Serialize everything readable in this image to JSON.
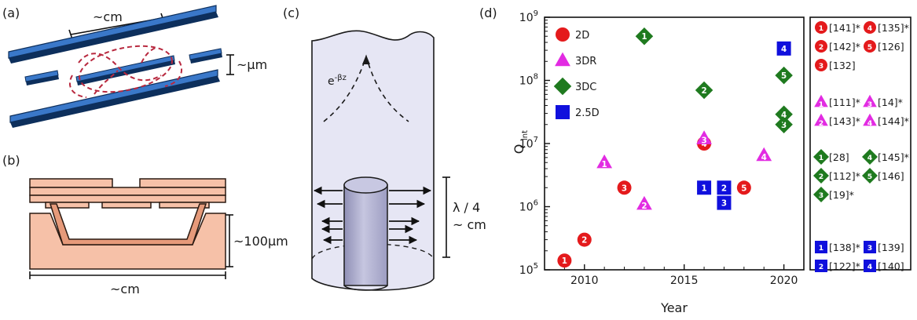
{
  "panels": {
    "a": {
      "label": "(a)",
      "length": "~cm",
      "gap": "~µm"
    },
    "b": {
      "label": "(b)",
      "height": "~100µm",
      "width": "~cm"
    },
    "c": {
      "label": "(c)",
      "decay": "e",
      "decay_exp": "-βz",
      "height": "λ / 4",
      "height2": "~ cm"
    },
    "d": {
      "label": "(d)"
    }
  },
  "colors": {
    "blue_strip": "#3a78c9",
    "blue_edge": "#0d2f5c",
    "red_dash": "#b8293f",
    "salmon": "#f6c1a8",
    "salmon_dark": "#e69a7a",
    "cavity_fill": "#e6e6f4",
    "post_fill": "#b7b7d4",
    "red": "#e41a1c",
    "magenta": "#e22be2",
    "green": "#1f7a1f",
    "blue": "#1010dd"
  },
  "chart_data": {
    "type": "scatter",
    "xlabel": "Year",
    "ylabel": "Q",
    "ylabel_sub": "int",
    "xlim": [
      2008,
      2021
    ],
    "ylim_log10": [
      5,
      9
    ],
    "xticks": [
      "2010",
      "2015",
      "2020"
    ],
    "yticks": [
      {
        "base": "10",
        "exp": "5",
        "v": 5
      },
      {
        "base": "10",
        "exp": "6",
        "v": 6
      },
      {
        "base": "10",
        "exp": "7",
        "v": 7
      },
      {
        "base": "10",
        "exp": "8",
        "v": 8
      },
      {
        "base": "10",
        "exp": "9",
        "v": 9
      }
    ],
    "legend": [
      {
        "name": "2D",
        "shape": "circle"
      },
      {
        "name": "3DR",
        "shape": "triangle"
      },
      {
        "name": "3DC",
        "shape": "diamond"
      },
      {
        "name": "2.5D",
        "shape": "square"
      }
    ],
    "series": [
      {
        "name": "2D",
        "shape": "circle",
        "color": "#e41a1c",
        "points": [
          {
            "label": "1",
            "x": 2009,
            "y": 140000
          },
          {
            "label": "2",
            "x": 2010,
            "y": 300000
          },
          {
            "label": "3",
            "x": 2012,
            "y": 2000000
          },
          {
            "label": "4",
            "x": 2016,
            "y": 10000000
          },
          {
            "label": "5",
            "x": 2018,
            "y": 2000000
          }
        ]
      },
      {
        "name": "3DR",
        "shape": "triangle",
        "color": "#e22be2",
        "points": [
          {
            "label": "1",
            "x": 2011,
            "y": 5000000
          },
          {
            "label": "2",
            "x": 2013,
            "y": 1100000
          },
          {
            "label": "3",
            "x": 2016,
            "y": 12000000
          },
          {
            "label": "4",
            "x": 2019,
            "y": 6500000
          }
        ]
      },
      {
        "name": "3DC",
        "shape": "diamond",
        "color": "#1f7a1f",
        "points": [
          {
            "label": "1",
            "x": 2013,
            "y": 500000000
          },
          {
            "label": "2",
            "x": 2016,
            "y": 70000000
          },
          {
            "label": "3",
            "x": 2020,
            "y": 20000000
          },
          {
            "label": "4",
            "x": 2020,
            "y": 29000000
          },
          {
            "label": "5",
            "x": 2020,
            "y": 120000000
          }
        ]
      },
      {
        "name": "2.5D",
        "shape": "square",
        "color": "#1010dd",
        "points": [
          {
            "label": "1",
            "x": 2016,
            "y": 2000000
          },
          {
            "label": "2",
            "x": 2017,
            "y": 2000000
          },
          {
            "label": "3",
            "x": 2017,
            "y": 1150000
          },
          {
            "label": "4",
            "x": 2020,
            "y": 320000000
          }
        ]
      }
    ],
    "references": [
      {
        "shape": "circle",
        "color": "#e41a1c",
        "entries": [
          [
            "1",
            "[141]*"
          ],
          [
            "4",
            "[135]*"
          ],
          [
            "2",
            "[142]*"
          ],
          [
            "5",
            "[126]"
          ],
          [
            "3",
            "[132]"
          ]
        ]
      },
      {
        "shape": "triangle",
        "color": "#e22be2",
        "entries": [
          [
            "1",
            "[111]*"
          ],
          [
            "3",
            "[14]*"
          ],
          [
            "2",
            "[143]*"
          ],
          [
            "4",
            "[144]*"
          ]
        ]
      },
      {
        "shape": "diamond",
        "color": "#1f7a1f",
        "entries": [
          [
            "1",
            "[28]"
          ],
          [
            "4",
            "[145]*"
          ],
          [
            "2",
            "[112]*"
          ],
          [
            "5",
            "[146]"
          ],
          [
            "3",
            "[19]*"
          ]
        ]
      },
      {
        "shape": "square",
        "color": "#1010dd",
        "entries": [
          [
            "1",
            "[138]*"
          ],
          [
            "3",
            "[139]"
          ],
          [
            "2",
            "[122]*"
          ],
          [
            "4",
            "[140]"
          ]
        ]
      }
    ]
  }
}
